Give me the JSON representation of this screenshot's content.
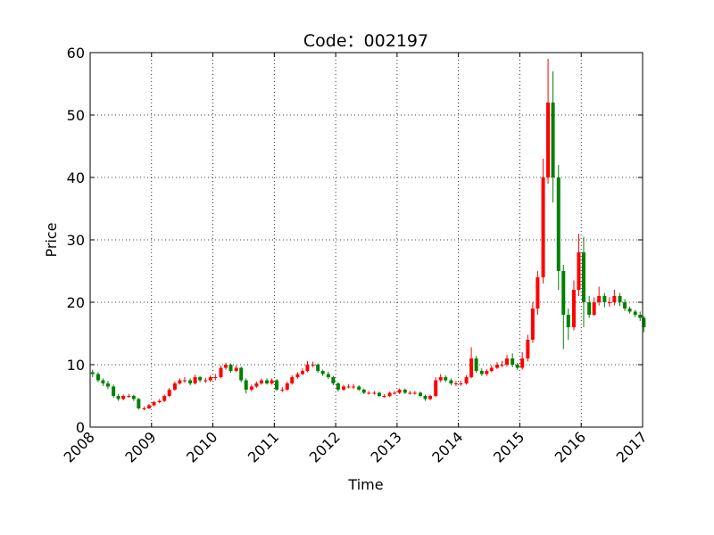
{
  "chart_data": {
    "type": "candlestick",
    "title": "Code：002197",
    "x_label": "Time",
    "y_label": "Price",
    "xlim": [
      2008,
      2017
    ],
    "xticks": [
      2008,
      2009,
      2010,
      2011,
      2012,
      2013,
      2014,
      2015,
      2016,
      2017
    ],
    "ylim": [
      0,
      60
    ],
    "yticks": [
      0,
      10,
      20,
      30,
      40,
      50,
      60
    ],
    "grid": true,
    "up_color": "#ff0000",
    "down_color": "#008000",
    "x": [
      2008.04,
      2008.13,
      2008.21,
      2008.29,
      2008.38,
      2008.46,
      2008.54,
      2008.63,
      2008.71,
      2008.79,
      2008.88,
      2008.96,
      2009.04,
      2009.13,
      2009.21,
      2009.29,
      2009.38,
      2009.46,
      2009.54,
      2009.63,
      2009.71,
      2009.79,
      2009.88,
      2009.96,
      2010.04,
      2010.13,
      2010.21,
      2010.29,
      2010.38,
      2010.46,
      2010.54,
      2010.63,
      2010.71,
      2010.79,
      2010.88,
      2010.96,
      2011.04,
      2011.13,
      2011.21,
      2011.29,
      2011.38,
      2011.46,
      2011.54,
      2011.63,
      2011.71,
      2011.79,
      2011.88,
      2011.96,
      2012.04,
      2012.13,
      2012.21,
      2012.29,
      2012.38,
      2012.46,
      2012.54,
      2012.63,
      2012.71,
      2012.79,
      2012.88,
      2012.96,
      2013.04,
      2013.13,
      2013.21,
      2013.29,
      2013.38,
      2013.46,
      2013.54,
      2013.63,
      2013.71,
      2013.79,
      2013.88,
      2013.96,
      2014.04,
      2014.13,
      2014.21,
      2014.29,
      2014.38,
      2014.46,
      2014.54,
      2014.63,
      2014.71,
      2014.79,
      2014.88,
      2014.96,
      2015.04,
      2015.13,
      2015.21,
      2015.29,
      2015.38,
      2015.46,
      2015.54,
      2015.63,
      2015.71,
      2015.79,
      2015.88,
      2015.96,
      2016.04,
      2016.13,
      2016.21,
      2016.29,
      2016.38,
      2016.46,
      2016.54,
      2016.63,
      2016.71,
      2016.79,
      2016.88,
      2016.96,
      2017.02
    ],
    "open": [
      8.8,
      8.5,
      7.5,
      7,
      6.5,
      5,
      4.5,
      5,
      5,
      4.5,
      3,
      3,
      3.5,
      4,
      4.2,
      5,
      6,
      7,
      7.5,
      7.5,
      7,
      8,
      7.5,
      7.5,
      8,
      8,
      9.5,
      10,
      9,
      9.5,
      7.5,
      6,
      6.5,
      7,
      7.5,
      7,
      7.5,
      6,
      6,
      7,
      8,
      8.5,
      9,
      10,
      10,
      9,
      8.5,
      8,
      7,
      6,
      6.5,
      6.5,
      6.5,
      6,
      5.5,
      5.5,
      5.5,
      5,
      5,
      5.5,
      5.5,
      6,
      5.5,
      5.5,
      5.5,
      5,
      4.5,
      5,
      7.5,
      8,
      7.5,
      7,
      7,
      7,
      8,
      11,
      9,
      8.5,
      9,
      9.5,
      10,
      10,
      11,
      10,
      9.5,
      11,
      14,
      19,
      24,
      40,
      52,
      40,
      25,
      18,
      16,
      22,
      28,
      20,
      18,
      20,
      21,
      20,
      20,
      21,
      20,
      19,
      18.5,
      18,
      17.5
    ],
    "high": [
      9.2,
      8.8,
      7.8,
      7.4,
      6.8,
      5.3,
      5.2,
      5.3,
      5.2,
      4.7,
      3.3,
      3.7,
      4.2,
      4.5,
      5.2,
      6.3,
      7.3,
      7.8,
      8,
      7.8,
      8.4,
      8.2,
      7.9,
      8.3,
      8.5,
      9.9,
      10.3,
      10.2,
      9.9,
      9.7,
      7.8,
      6.8,
      7.3,
      7.8,
      7.8,
      7.8,
      7.7,
      6.4,
      7.3,
      8.3,
      8.8,
      9.4,
      10.6,
      10.5,
      10.2,
      9.2,
      8.9,
      8.2,
      7.2,
      6.8,
      6.9,
      6.9,
      6.7,
      6.2,
      5.8,
      5.8,
      5.7,
      5.3,
      5.7,
      5.8,
      6.2,
      6.2,
      5.8,
      5.8,
      5.7,
      5.2,
      5.2,
      8,
      8.5,
      8.3,
      7.8,
      7.4,
      7.4,
      8.3,
      12.8,
      11.4,
      9.4,
      9.3,
      9.9,
      10.4,
      10.6,
      11.6,
      11.8,
      10.3,
      12,
      14.8,
      20,
      25,
      43,
      59,
      57,
      42,
      26,
      19,
      23.5,
      31,
      30.5,
      21,
      20.8,
      22.5,
      21.5,
      20.8,
      22,
      21.5,
      20.5,
      19.3,
      18.8,
      18.5,
      17.8
    ],
    "low": [
      8,
      7.2,
      6.6,
      6.1,
      4.7,
      4.2,
      4.3,
      4.7,
      4.2,
      2.8,
      2.7,
      2.9,
      3.3,
      3.8,
      4,
      4.8,
      5.8,
      6.8,
      7.1,
      6.7,
      6.8,
      7.2,
      7.1,
      7.2,
      7.5,
      7.8,
      9.2,
      8.7,
      8.8,
      7.2,
      5.4,
      5.7,
      6.3,
      6.8,
      6.8,
      6.8,
      5.8,
      5.6,
      5.8,
      6.8,
      7.8,
      8.3,
      8.8,
      9.6,
      8.7,
      8.2,
      7.7,
      6.7,
      5.7,
      5.8,
      6.2,
      6.1,
      5.8,
      5.3,
      5.2,
      5.2,
      4.8,
      4.7,
      4.8,
      5.2,
      5.3,
      5.3,
      5.2,
      5.2,
      4.8,
      4.2,
      4.3,
      4.8,
      7.2,
      7.2,
      6.7,
      6.6,
      6.6,
      6.8,
      7.8,
      8.7,
      8.2,
      8.2,
      8.8,
      9.3,
      9.6,
      9.7,
      9.6,
      9.2,
      9.2,
      10.5,
      13.5,
      18,
      23,
      39,
      36,
      22,
      12.5,
      14,
      15.5,
      21,
      16,
      17.5,
      17.8,
      19.5,
      19.2,
      19.3,
      19.5,
      19.4,
      18.6,
      18.2,
      17.6,
      17,
      15.2
    ],
    "close": [
      8.5,
      7.5,
      7,
      6.5,
      5,
      4.5,
      5,
      5,
      4.5,
      3,
      3,
      3.5,
      4,
      4.2,
      5,
      6,
      7,
      7.5,
      7.5,
      7,
      8,
      7.5,
      7.5,
      8,
      8,
      9.5,
      10,
      9,
      9.5,
      7.5,
      6,
      6.5,
      7,
      7.5,
      7,
      7.5,
      6,
      6,
      7,
      8,
      8.5,
      9,
      10,
      10,
      9,
      8.5,
      8,
      7,
      6,
      6.5,
      6.5,
      6.5,
      6,
      5.5,
      5.5,
      5.5,
      5,
      5,
      5.5,
      5.5,
      6,
      5.5,
      5.5,
      5.5,
      5,
      4.5,
      5,
      7.5,
      8,
      7.5,
      7,
      7,
      7,
      8,
      11,
      9,
      8.5,
      9,
      9.5,
      10,
      10,
      11,
      10,
      9.5,
      11,
      14,
      19,
      24,
      40,
      52,
      40,
      25,
      18,
      16,
      22,
      28,
      20,
      18,
      20,
      21,
      20,
      20,
      21,
      20,
      19,
      18.5,
      18,
      17.5,
      16
    ]
  }
}
